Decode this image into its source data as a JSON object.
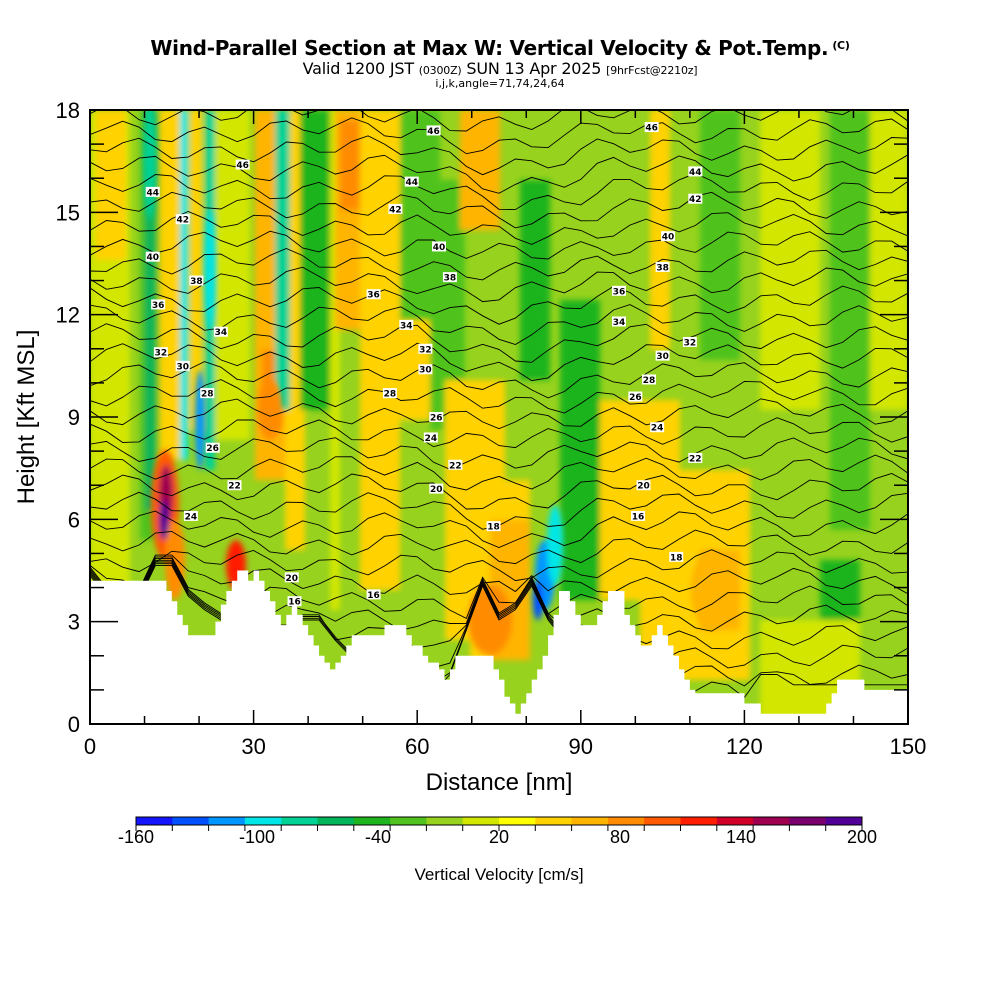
{
  "header": {
    "title": "Wind-Parallel Section at Max W: Vertical Velocity & Pot.Temp.",
    "title_mark": "(C)",
    "subtitle_valid": "Valid 1200 JST",
    "subtitle_z": "(0300Z)",
    "subtitle_date": "SUN 13 Apr 2025",
    "subtitle_fcst": "[9hrFcst@2210z]",
    "subtitle2": "i,j,k,angle=71,74,24,64"
  },
  "chart_data": {
    "type": "heatmap",
    "xlabel": "Distance [nm]",
    "ylabel": "Height [Kft MSL]",
    "xlim": [
      0,
      150
    ],
    "ylim": [
      0,
      18
    ],
    "xticks": [
      "0",
      "30",
      "60",
      "90",
      "120",
      "150"
    ],
    "yticks": [
      "0",
      "3",
      "6",
      "9",
      "12",
      "15",
      "18"
    ],
    "colorbar": {
      "title": "Vertical Velocity [cm/s]",
      "labels": [
        "-160",
        "-100",
        "-40",
        "20",
        "80",
        "140",
        "200"
      ],
      "colors": [
        "#1414ff",
        "#0050ff",
        "#0096ff",
        "#00e6e6",
        "#00d296",
        "#00b45a",
        "#1eb41e",
        "#50c31e",
        "#96d21e",
        "#d2e600",
        "#ffff00",
        "#ffd200",
        "#ffb400",
        "#ff8c00",
        "#ff5a00",
        "#ff1e00",
        "#d20028",
        "#a00050",
        "#78006e",
        "#500096"
      ]
    },
    "field": "vertical velocity (cm/s) shaded, potential temperature contours",
    "contour_labels": [
      {
        "x": 28,
        "y": 16.4,
        "text": "46"
      },
      {
        "x": 63,
        "y": 17.4,
        "text": "46"
      },
      {
        "x": 103,
        "y": 17.5,
        "text": "46"
      },
      {
        "x": 11.5,
        "y": 15.6,
        "text": "44"
      },
      {
        "x": 59,
        "y": 15.9,
        "text": "44"
      },
      {
        "x": 111,
        "y": 16.2,
        "text": "44"
      },
      {
        "x": 17,
        "y": 14.8,
        "text": "42"
      },
      {
        "x": 56,
        "y": 15.1,
        "text": "42"
      },
      {
        "x": 111,
        "y": 15.4,
        "text": "42"
      },
      {
        "x": 11.5,
        "y": 13.7,
        "text": "40"
      },
      {
        "x": 64,
        "y": 14,
        "text": "40"
      },
      {
        "x": 106,
        "y": 14.3,
        "text": "40"
      },
      {
        "x": 19.5,
        "y": 13,
        "text": "38"
      },
      {
        "x": 66,
        "y": 13.1,
        "text": "38"
      },
      {
        "x": 105,
        "y": 13.4,
        "text": "38"
      },
      {
        "x": 12.5,
        "y": 12.3,
        "text": "36"
      },
      {
        "x": 52,
        "y": 12.6,
        "text": "36"
      },
      {
        "x": 97,
        "y": 12.7,
        "text": "36"
      },
      {
        "x": 24,
        "y": 11.5,
        "text": "34"
      },
      {
        "x": 58,
        "y": 11.7,
        "text": "34"
      },
      {
        "x": 97,
        "y": 11.8,
        "text": "34"
      },
      {
        "x": 13,
        "y": 10.9,
        "text": "32"
      },
      {
        "x": 61.5,
        "y": 11,
        "text": "32"
      },
      {
        "x": 110,
        "y": 11.2,
        "text": "32"
      },
      {
        "x": 17,
        "y": 10.5,
        "text": "30"
      },
      {
        "x": 61.5,
        "y": 10.4,
        "text": "30"
      },
      {
        "x": 105,
        "y": 10.8,
        "text": "30"
      },
      {
        "x": 21.5,
        "y": 9.7,
        "text": "28"
      },
      {
        "x": 55,
        "y": 9.7,
        "text": "28"
      },
      {
        "x": 102.5,
        "y": 10.1,
        "text": "28"
      },
      {
        "x": 63.5,
        "y": 9,
        "text": "26"
      },
      {
        "x": 22.5,
        "y": 8.1,
        "text": "26"
      },
      {
        "x": 100,
        "y": 9.6,
        "text": "26"
      },
      {
        "x": 62.5,
        "y": 8.4,
        "text": "24"
      },
      {
        "x": 104,
        "y": 8.7,
        "text": "24"
      },
      {
        "x": 18.5,
        "y": 6.1,
        "text": "24"
      },
      {
        "x": 26.5,
        "y": 7,
        "text": "22"
      },
      {
        "x": 67,
        "y": 7.6,
        "text": "22"
      },
      {
        "x": 111,
        "y": 7.8,
        "text": "22"
      },
      {
        "x": 63.5,
        "y": 6.9,
        "text": "20"
      },
      {
        "x": 101.5,
        "y": 7,
        "text": "20"
      },
      {
        "x": 37,
        "y": 4.3,
        "text": "20"
      },
      {
        "x": 74,
        "y": 5.8,
        "text": "18"
      },
      {
        "x": 107.5,
        "y": 4.9,
        "text": "18"
      },
      {
        "x": 100.5,
        "y": 6.1,
        "text": "16"
      },
      {
        "x": 52,
        "y": 3.8,
        "text": "16"
      },
      {
        "x": 37.5,
        "y": 3.6,
        "text": "16"
      }
    ]
  }
}
